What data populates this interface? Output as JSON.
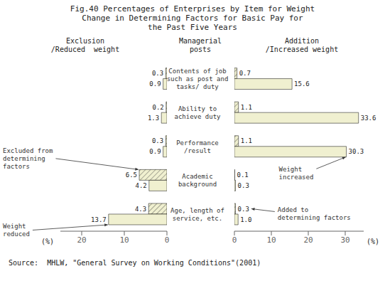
{
  "chart_data": {
    "type": "bar",
    "orientation": "horizontal",
    "title": "Fig.40 Percentages of Enterprises by Item for Weight\nChange in Determining Factors for Basic Pay for\nthe Past Five Years",
    "source": "Source:  MHLW, \"General Survey on Working Conditions\"(2001)",
    "categories": [
      "Contents of job\nsuch as post and\ntasks/ duty",
      "Ability to\nachieve duty",
      "Performance\n/result",
      "Academic\nbackground",
      "Age, length of\nservice, etc."
    ],
    "category_header": "Managerial\nposts",
    "data_labels": true,
    "grid": false,
    "panels": [
      {
        "header": "Exclusion\n/Reduced  weight",
        "xlabel": "(%)",
        "xlim": [
          25,
          0
        ],
        "xticks": [
          20,
          10,
          0
        ],
        "series": [
          {
            "color": "#f0f0d0",
            "values": [
              0.3,
              0.2,
              0.3,
              6.5,
              4.3
            ],
            "annotation": {
              "text": "Excluded from\ndetermining\nfactors",
              "category": "Academic\nbackground"
            }
          },
          {
            "color": "#f0f0d0",
            "values": [
              0.9,
              1.3,
              0.9,
              4.2,
              13.7
            ],
            "annotation": {
              "text": "Weight\nreduced",
              "category": "Age, length of\nservice, etc."
            }
          }
        ]
      },
      {
        "header": "Addition\n/Increased weight",
        "xlabel": "(%)",
        "xlim": [
          0,
          35
        ],
        "xticks": [
          0,
          10,
          20,
          30
        ],
        "series": [
          {
            "color": "#f0f0d0",
            "values": [
              0.7,
              1.1,
              1.1,
              0.1,
              0.3
            ],
            "annotation": {
              "text": "Added to\ndetermining factors",
              "category": "Age, length of\nservice, etc."
            }
          },
          {
            "color": "#f0f0d0",
            "values": [
              15.6,
              33.6,
              30.3,
              0.3,
              1.0
            ],
            "value_labels": [
              "15.6",
              "33.6",
              "30.3",
              "0.3",
              "1.0"
            ],
            "annotation": {
              "text": "Weight\nincreased",
              "category": "Performance\n/result"
            }
          }
        ]
      }
    ]
  }
}
